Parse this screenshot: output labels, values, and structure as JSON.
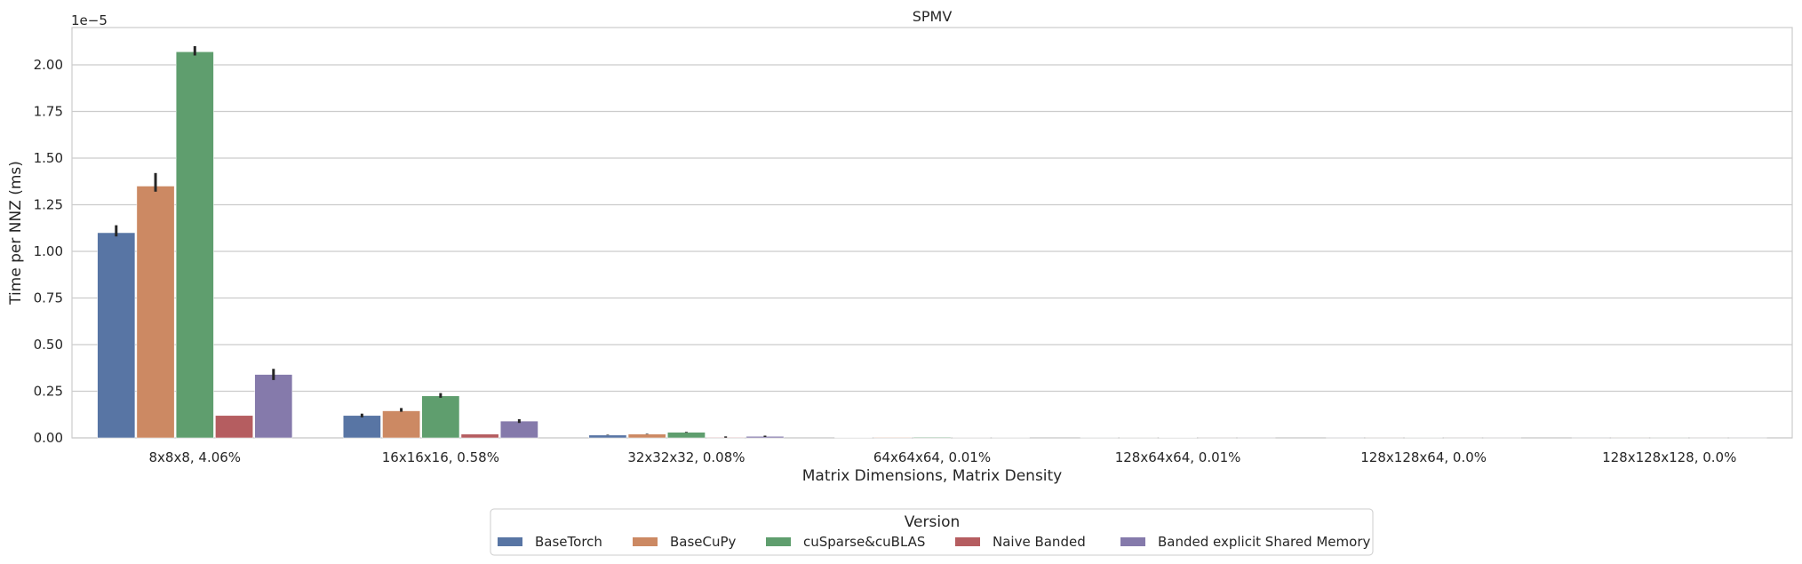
{
  "chart_data": {
    "type": "bar",
    "title": "SPMV",
    "xlabel": "Matrix Dimensions, Matrix Density",
    "ylabel": "Time per NNZ (ms)",
    "y_offset_label": "1e−5",
    "ylim": [
      0,
      2.2
    ],
    "yticks": [
      "0.00",
      "0.25",
      "0.50",
      "0.75",
      "1.00",
      "1.25",
      "1.50",
      "1.75",
      "2.00"
    ],
    "grid": "horizontal",
    "legend_position": "bottom-center",
    "legend_title": "Version",
    "categories": [
      "8x8x8, 4.06%",
      "16x16x16, 0.58%",
      "32x32x32, 0.08%",
      "64x64x64, 0.01%",
      "128x64x64, 0.01%",
      "128x128x64, 0.0%",
      "128x128x128, 0.0%"
    ],
    "series": [
      {
        "name": "BaseTorch",
        "color": "#5875a4",
        "values": [
          1.1,
          0.12,
          0.015,
          0.002,
          0.001,
          0.0005,
          0.0003
        ],
        "err_high": [
          1.14,
          0.13,
          0.017,
          0.002,
          0.001,
          0.0005,
          0.0003
        ],
        "err_low": [
          1.08,
          0.11,
          0.014,
          0.002,
          0.001,
          0.0005,
          0.0003
        ]
      },
      {
        "name": "BaseCuPy",
        "color": "#cc8963",
        "values": [
          1.35,
          0.145,
          0.02,
          0.003,
          0.001,
          0.0005,
          0.0003
        ],
        "err_high": [
          1.42,
          0.16,
          0.022,
          0.003,
          0.001,
          0.0005,
          0.0003
        ],
        "err_low": [
          1.32,
          0.14,
          0.019,
          0.003,
          0.001,
          0.0005,
          0.0003
        ]
      },
      {
        "name": "cuSparse&cuBLAS",
        "color": "#5f9e6e",
        "values": [
          2.07,
          0.225,
          0.03,
          0.004,
          0.002,
          0.001,
          0.0005
        ],
        "err_high": [
          2.1,
          0.24,
          0.032,
          0.004,
          0.002,
          0.001,
          0.0005
        ],
        "err_low": [
          2.05,
          0.215,
          0.028,
          0.004,
          0.002,
          0.001,
          0.0005
        ]
      },
      {
        "name": "Naive Banded",
        "color": "#b55d60",
        "values": [
          0.12,
          0.02,
          0.003,
          0.001,
          0.0005,
          0.0003,
          0.0002
        ],
        "err_high": [
          0.12,
          0.02,
          0.008,
          0.001,
          0.0005,
          0.0003,
          0.0002
        ],
        "err_low": [
          0.12,
          0.02,
          0.001,
          0.001,
          0.0005,
          0.0003,
          0.0002
        ]
      },
      {
        "name": "Banded explicit Shared Memory",
        "color": "#857aab",
        "values": [
          0.34,
          0.09,
          0.008,
          0.001,
          0.0005,
          0.0003,
          0.0002
        ],
        "err_high": [
          0.37,
          0.1,
          0.012,
          0.001,
          0.0005,
          0.0003,
          0.0002
        ],
        "err_low": [
          0.31,
          0.08,
          0.005,
          0.001,
          0.0005,
          0.0003,
          0.0002
        ]
      }
    ]
  }
}
